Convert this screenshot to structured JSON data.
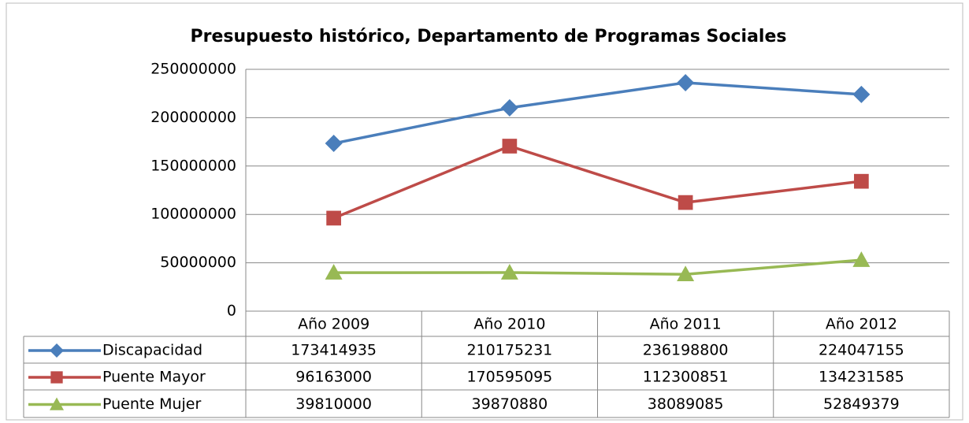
{
  "chart_data": {
    "type": "line",
    "title": "Presupuesto histórico, Departamento de Programas Sociales",
    "categories": [
      "Año 2009",
      "Año 2010",
      "Año 2011",
      "Año 2012"
    ],
    "series": [
      {
        "name": "Discapacidad",
        "color": "#4a7ebb",
        "marker": "diamond",
        "values": [
          173414935,
          210175231,
          236198800,
          224047155
        ]
      },
      {
        "name": "Puente Mayor",
        "color": "#be4b48",
        "marker": "square",
        "values": [
          96163000,
          170595095,
          112300851,
          134231585
        ]
      },
      {
        "name": "Puente Mujer",
        "color": "#98b954",
        "marker": "triangle",
        "values": [
          39810000,
          39870880,
          38089085,
          52849379
        ]
      }
    ],
    "ylim": [
      0,
      250000000
    ],
    "yticks": [
      0,
      50000000,
      100000000,
      150000000,
      200000000,
      250000000
    ],
    "grid": true,
    "data_table": true
  }
}
